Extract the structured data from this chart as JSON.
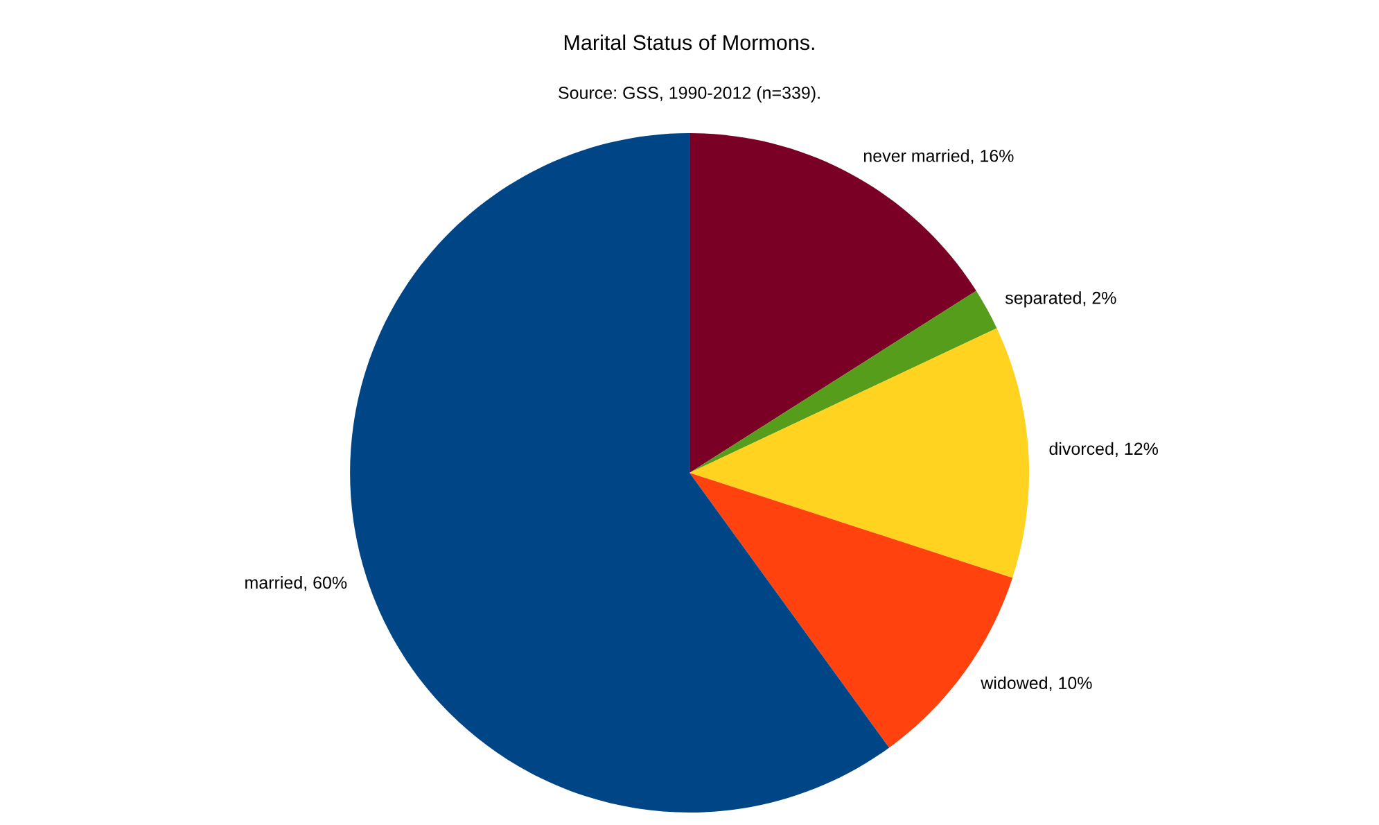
{
  "chart_data": {
    "type": "pie",
    "title": "Marital Status of Mormons.",
    "subtitle": "Source: GSS, 1990-2012 (n=339).",
    "categories": [
      "never married",
      "separated",
      "divorced",
      "widowed",
      "married"
    ],
    "values": [
      16,
      2,
      12,
      10,
      60
    ],
    "value_labels": [
      "16%",
      "2%",
      "12%",
      "10%",
      "60%"
    ],
    "colors": [
      "#7b0025",
      "#579d1c",
      "#ffd320",
      "#ff420e",
      "#004586"
    ],
    "legend": false
  }
}
